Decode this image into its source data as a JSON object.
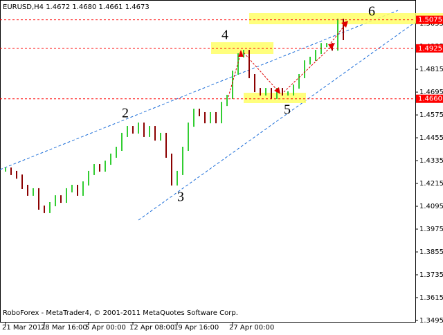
{
  "chart_data": {
    "type": "price-bars",
    "title": "EURUSD,H4  1.4672 1.4680 1.4661 1.4673",
    "footer": "RoboForex - MetaTrader4, © 2001-2011 MetaQuotes Software Corp.",
    "categories": [
      "21 Mar 2011",
      null,
      null,
      null,
      null,
      null,
      null,
      "28 Mar 16:00",
      null,
      null,
      null,
      null,
      null,
      null,
      null,
      "5 Apr 00:00",
      null,
      null,
      null,
      null,
      null,
      null,
      null,
      "12 Apr 08:00",
      null,
      null,
      null,
      null,
      null,
      null,
      null,
      "19 Apr 16:00",
      null,
      null,
      null,
      null,
      null,
      null,
      null,
      null,
      null,
      "27 Apr 00:00",
      null,
      null,
      null,
      null,
      null,
      null,
      null,
      null,
      null,
      null,
      null,
      null,
      null,
      null,
      null,
      null,
      null,
      null,
      null,
      null
    ],
    "values": [
      1.4288,
      1.427,
      1.4251,
      1.4197,
      1.4161,
      1.4179,
      1.4088,
      1.407,
      1.4106,
      1.4142,
      1.4124,
      1.4179,
      1.4197,
      1.4161,
      1.4215,
      1.427,
      1.4306,
      1.4288,
      1.4324,
      1.4361,
      1.4397,
      1.447,
      1.4506,
      1.4488,
      1.4524,
      1.447,
      1.4506,
      1.4451,
      1.447,
      1.4361,
      1.4215,
      1.427,
      1.4397,
      1.4524,
      1.4597,
      1.4579,
      1.4542,
      1.4579,
      1.4542,
      1.4633,
      1.467,
      1.4797,
      1.4888,
      1.4906,
      1.4779,
      1.4706,
      1.4688,
      1.4706,
      1.467,
      1.4706,
      1.4688,
      1.4688,
      1.4724,
      1.4779,
      1.4851,
      1.487,
      1.4906,
      1.4942,
      1.4942,
      1.4924,
      1.507,
      1.4979
    ],
    "up_color": "#32cd32",
    "down_color": "#8b0000",
    "ylim": [
      1.3484,
      1.515
    ],
    "yticks": [
      1.5055,
      1.4935,
      1.4815,
      1.4695,
      1.4575,
      1.4455,
      1.4335,
      1.4215,
      1.4095,
      1.3975,
      1.3855,
      1.3735,
      1.3615,
      1.3495
    ],
    "levels": [
      1.5075,
      1.4925,
      {
        "value": 1.466,
        "label": "1.4660"
      }
    ],
    "level_color": "#ff0000",
    "wave_labels": [
      "2",
      "3",
      "4",
      "5",
      "6"
    ]
  }
}
